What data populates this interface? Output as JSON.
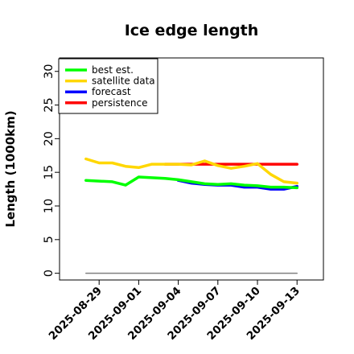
{
  "chart_data": {
    "type": "line",
    "title": "Ice edge length",
    "xlabel": "",
    "ylabel": "Length (1000km)",
    "ylim": [
      -1,
      32
    ],
    "xlim": [
      "2025-08-26",
      "2025-09-15"
    ],
    "yticks": [
      0,
      5,
      10,
      15,
      20,
      25,
      30
    ],
    "xticks": [
      "2025-08-29",
      "2025-09-01",
      "2025-09-04",
      "2025-09-07",
      "2025-09-10",
      "2025-09-13"
    ],
    "highlighted_xtick": "2025-09-04",
    "highlight_color": "#228b22",
    "grid": false,
    "legend_position": "top-left",
    "series": [
      {
        "name": "best est.",
        "color": "#00ff00",
        "x": [
          "2025-08-28",
          "2025-08-29",
          "2025-08-30",
          "2025-08-31",
          "2025-09-01",
          "2025-09-02",
          "2025-09-03",
          "2025-09-04",
          "2025-09-05",
          "2025-09-06",
          "2025-09-07",
          "2025-09-08",
          "2025-09-09",
          "2025-09-10",
          "2025-09-11",
          "2025-09-12",
          "2025-09-13"
        ],
        "values": [
          13.8,
          13.7,
          13.6,
          13.1,
          14.3,
          14.2,
          14.1,
          13.9,
          13.6,
          13.3,
          13.2,
          13.3,
          13.1,
          13.0,
          12.8,
          12.8,
          12.7
        ]
      },
      {
        "name": "satellite data",
        "color": "#ffd700",
        "x": [
          "2025-08-28",
          "2025-08-29",
          "2025-08-30",
          "2025-08-31",
          "2025-09-01",
          "2025-09-02",
          "2025-09-03",
          "2025-09-04",
          "2025-09-05",
          "2025-09-06",
          "2025-09-07",
          "2025-09-08",
          "2025-09-09",
          "2025-09-10",
          "2025-09-11",
          "2025-09-12",
          "2025-09-13"
        ],
        "values": [
          17.0,
          16.4,
          16.4,
          15.9,
          15.7,
          16.2,
          16.2,
          16.2,
          16.1,
          16.7,
          16.0,
          15.6,
          15.9,
          16.3,
          14.7,
          13.6,
          13.4
        ]
      },
      {
        "name": "forecast",
        "color": "#0000ff",
        "x": [
          "2025-09-04",
          "2025-09-05",
          "2025-09-06",
          "2025-09-07",
          "2025-09-08",
          "2025-09-09",
          "2025-09-10",
          "2025-09-11",
          "2025-09-12",
          "2025-09-13"
        ],
        "values": [
          13.8,
          13.4,
          13.2,
          13.1,
          13.1,
          12.8,
          12.8,
          12.5,
          12.5,
          12.9
        ]
      },
      {
        "name": "persistence",
        "color": "#ff0000",
        "x": [
          "2025-09-03",
          "2025-09-13"
        ],
        "values": [
          16.2,
          16.2
        ]
      },
      {
        "name": "",
        "color": "#808080",
        "x": [
          "2025-08-28",
          "2025-09-13"
        ],
        "values": [
          0,
          0
        ]
      }
    ]
  }
}
